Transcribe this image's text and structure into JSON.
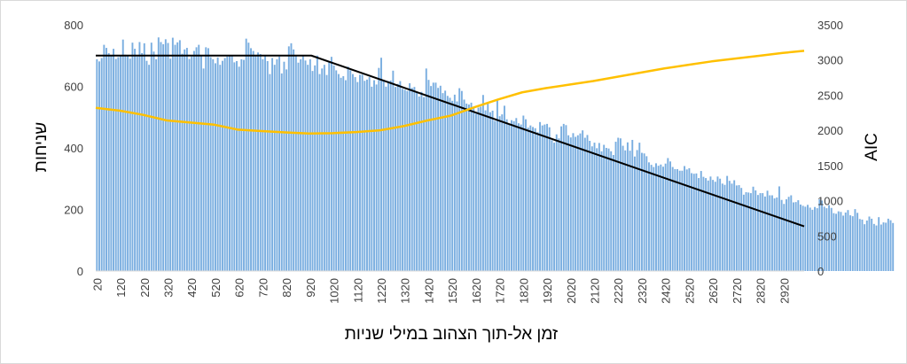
{
  "chart_data": {
    "type": "bar",
    "title": "",
    "xlabel": "זמן אל-תוך הצהוב במילי שניות",
    "ylabel": "שניחות",
    "y2label": "AIC",
    "ylim": [
      0,
      800
    ],
    "y2lim": [
      0,
      3500
    ],
    "yticks": [
      "0",
      "200",
      "400",
      "600",
      "800"
    ],
    "y2ticks": [
      "0",
      "500",
      "1000",
      "1500",
      "2000",
      "2500",
      "3000",
      "3500"
    ],
    "xlim": [
      20,
      3010
    ],
    "xticks": [
      "20",
      "120",
      "220",
      "320",
      "420",
      "520",
      "620",
      "720",
      "820",
      "920",
      "1020",
      "1120",
      "1220",
      "1320",
      "1420",
      "1520",
      "1620",
      "1720",
      "1820",
      "1920",
      "2020",
      "2120",
      "2220",
      "2320",
      "2420",
      "2520",
      "2620",
      "2720",
      "2820",
      "2920"
    ],
    "grid": false,
    "colors": {
      "bars": "#7aaee0",
      "fit_line": "#000000",
      "aic_line": "#ffc000"
    },
    "series": [
      {
        "type": "bar",
        "axis": "left",
        "x_start": 20,
        "x_step": 10,
        "values": [
          688,
          681,
          692,
          735,
          725,
          708,
          698,
          722,
          689,
          695,
          698,
          752,
          703,
          698,
          690,
          742,
          722,
          697,
          744,
          708,
          740,
          683,
          670,
          742,
          713,
          688,
          759,
          744,
          737,
          753,
          741,
          690,
          758,
          735,
          743,
          750,
          706,
          720,
          725,
          689,
          697,
          715,
          727,
          735,
          700,
          658,
          727,
          724,
          695,
          688,
          675,
          694,
          670,
          683,
          692,
          697,
          702,
          700,
          678,
          682,
          664,
          688,
          686,
          755,
          742,
          724,
          715,
          698,
          710,
          705,
          688,
          700,
          682,
          640,
          692,
          670,
          688,
          697,
          642,
          680,
          655,
          730,
          740,
          720,
          700,
          677,
          688,
          702,
          684,
          670,
          688,
          650,
          668,
          700,
          640,
          658,
          670,
          637,
          678,
          696,
          668,
          652,
          640,
          628,
          633,
          620,
          664,
          652,
          640,
          630,
          614,
          638,
          638,
          618,
          622,
          630,
          599,
          620,
          606,
          660,
          693,
          620,
          599,
          617,
          619,
          651,
          598,
          608,
          617,
          592,
          589,
          585,
          610,
          595,
          598,
          580,
          567,
          582,
          565,
          658,
          621,
          601,
          612,
          612,
          595,
          602,
          578,
          586,
          569,
          563,
          553,
          573,
          551,
          594,
          585,
          557,
          544,
          541,
          547,
          530,
          511,
          531,
          534,
          572,
          522,
          544,
          516,
          521,
          488,
          554,
          503,
          509,
          537,
          493,
          477,
          490,
          487,
          497,
          480,
          476,
          505,
          493,
          466,
          473,
          468,
          464,
          451,
          484,
          473,
          476,
          478,
          467,
          425,
          417,
          444,
          431,
          470,
          478,
          474,
          441,
          434,
          448,
          436,
          441,
          447,
          457,
          433,
          442,
          423,
          405,
          417,
          399,
          416,
          389,
          410,
          400,
          398,
          389,
          377,
          420,
          433,
          431,
          407,
          392,
          418,
          391,
          426,
          372,
          393,
          417,
          384,
          382,
          373,
          353,
          345,
          338,
          350,
          342,
          346,
          339,
          349,
          367,
          356,
          338,
          331,
          331,
          326,
          326,
          341,
          330,
          334,
          318,
          316,
          317,
          302,
          325,
          306,
          302,
          294,
          307,
          296,
          290,
          307,
          300,
          284,
          280,
          309,
          293,
          284,
          295,
          278,
          279,
          270,
          248,
          256,
          255,
          253,
          274,
          262,
          247,
          253,
          253,
          242,
          261,
          246,
          246,
          236,
          239,
          275,
          231,
          218,
          233,
          241,
          246,
          223,
          224,
          230,
          216,
          212,
          209,
          215,
          206,
          199,
          208,
          204,
          233,
          229,
          209,
          204,
          214,
          205,
          188,
          186,
          194,
          192,
          180,
          190,
          198,
          181,
          178,
          201,
          189,
          169,
          167,
          152,
          164,
          177,
          170,
          153,
          148,
          175,
          151,
          158,
          157,
          170,
          165,
          156
        ]
      },
      {
        "type": "line",
        "axis": "left",
        "name": "",
        "points": [
          [
            20,
            700
          ],
          [
            490,
            700
          ],
          [
            930,
            700
          ],
          [
            3010,
            145
          ]
        ]
      },
      {
        "type": "line",
        "axis": "right",
        "name": "",
        "points": [
          [
            20,
            2320
          ],
          [
            120,
            2280
          ],
          [
            220,
            2220
          ],
          [
            320,
            2140
          ],
          [
            420,
            2110
          ],
          [
            520,
            2080
          ],
          [
            620,
            2010
          ],
          [
            720,
            1990
          ],
          [
            820,
            1970
          ],
          [
            920,
            1955
          ],
          [
            1020,
            1960
          ],
          [
            1120,
            1975
          ],
          [
            1220,
            2000
          ],
          [
            1320,
            2060
          ],
          [
            1420,
            2140
          ],
          [
            1520,
            2210
          ],
          [
            1620,
            2330
          ],
          [
            1720,
            2440
          ],
          [
            1820,
            2540
          ],
          [
            1920,
            2600
          ],
          [
            2020,
            2650
          ],
          [
            2120,
            2700
          ],
          [
            2220,
            2760
          ],
          [
            2320,
            2820
          ],
          [
            2420,
            2880
          ],
          [
            2520,
            2930
          ],
          [
            2620,
            2980
          ],
          [
            2720,
            3020
          ],
          [
            2820,
            3060
          ],
          [
            2920,
            3100
          ],
          [
            3010,
            3130
          ]
        ]
      }
    ]
  }
}
